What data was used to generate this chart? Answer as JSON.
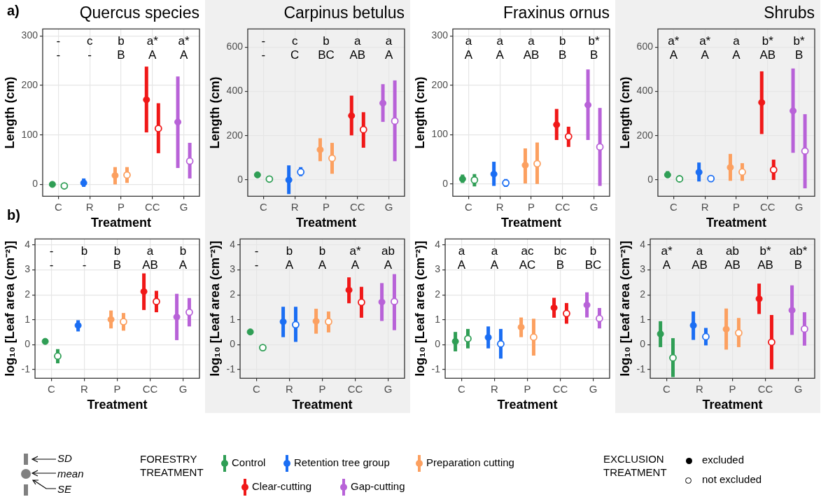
{
  "chart_data": [
    {
      "type": "scatter",
      "title": "Quercus species",
      "xlabel": "Treatment",
      "ylabel": "Length (cm)",
      "categories": [
        "C",
        "R",
        "P",
        "CC",
        "G"
      ],
      "ylim": [
        -24,
        314
      ],
      "yticks": [
        0,
        100,
        200,
        300
      ],
      "grid": true,
      "marker": "circle",
      "series": [
        {
          "colors": [
            "#2f9e55",
            "#1b6ef3",
            "#fca060",
            "#f01818",
            "#b862d8"
          ],
          "values": [
            0,
            3,
            18,
            171,
            126
          ],
          "errors": [
            null,
            [
              -5,
              12
            ],
            [
              0,
              35
            ],
            [
              105,
              238
            ],
            [
              33,
              218
            ]
          ]
        },
        {
          "colors": [
            "#2f9e55",
            null,
            "#fca060",
            "#f01818",
            "#b862d8"
          ],
          "values": [
            -3,
            null,
            19,
            113,
            47
          ],
          "errors": [
            null,
            null,
            [
              3,
              35
            ],
            [
              63,
              164
            ],
            [
              12,
              84
            ]
          ]
        }
      ],
      "annotations": [
        "-",
        "c",
        "b",
        "a*",
        "a*",
        "-",
        "-",
        "B",
        "A",
        "A",
        "a)"
      ]
    },
    {
      "type": "scatter",
      "title": "Carpinus betulus",
      "xlabel": "Treatment",
      "ylabel": "Length (cm)",
      "categories": [
        "C",
        "R",
        "P",
        "CC",
        "G"
      ],
      "ylim": [
        -75,
        683
      ],
      "yticks": [
        0,
        200,
        400,
        600
      ],
      "grid": true,
      "marker": "circle",
      "series": [
        {
          "colors": [
            "#2f9e55",
            "#1b6ef3",
            "#fca060",
            "#f01818",
            "#b862d8"
          ],
          "values": [
            22,
            -1,
            136,
            290,
            347
          ],
          "errors": [
            null,
            [
              -65,
              65
            ],
            [
              84,
              188
            ],
            [
              201,
              381
            ],
            [
              262,
              433
            ]
          ]
        },
        {
          "colors": [
            "#2f9e55",
            "#1b6ef3",
            "#fca060",
            "#f01818",
            "#b862d8"
          ],
          "values": [
            3,
            35,
            97,
            227,
            266
          ],
          "errors": [
            null,
            [
              16,
              57
            ],
            [
              27,
              167
            ],
            [
              145,
              306
            ],
            [
              84,
              450
            ]
          ]
        }
      ],
      "annotations": [
        "-",
        "c",
        "b",
        "a",
        "a",
        "-",
        "C",
        "BC",
        "AB",
        "A"
      ]
    },
    {
      "type": "scatter",
      "title": "Fraxinus ornus",
      "xlabel": "Treatment",
      "ylabel": "Length (cm)",
      "categories": [
        "C",
        "R",
        "P",
        "CC",
        "G"
      ],
      "ylim": [
        -25,
        314
      ],
      "yticks": [
        0,
        100,
        200,
        300
      ],
      "grid": true,
      "marker": "circle",
      "series": [
        {
          "colors": [
            "#2f9e55",
            "#1b6ef3",
            "#fca060",
            "#f01818",
            "#b862d8"
          ],
          "values": [
            10,
            20,
            38,
            120,
            160
          ],
          "errors": [
            [
              2,
              19
            ],
            [
              -4,
              45
            ],
            [
              1,
              72
            ],
            [
              89,
              152
            ],
            [
              89,
              232
            ]
          ]
        },
        {
          "colors": [
            "#2f9e55",
            "#1b6ef3",
            "#fca060",
            "#f01818",
            "#b862d8"
          ],
          "values": [
            8,
            2,
            41,
            96,
            75
          ],
          "errors": [
            [
              -5,
              20
            ],
            [
              -6,
              10
            ],
            [
              0,
              84
            ],
            [
              75,
              116
            ],
            [
              -4,
              154
            ]
          ]
        }
      ],
      "annotations": [
        "a",
        "a",
        "a",
        "b",
        "b*",
        "A",
        "A",
        "AB",
        "B",
        "B"
      ]
    },
    {
      "type": "scatter",
      "title": "Shrubs",
      "xlabel": "Treatment",
      "ylabel": "Length (cm)",
      "categories": [
        "C",
        "R",
        "P",
        "CC",
        "G"
      ],
      "ylim": [
        -75,
        683
      ],
      "yticks": [
        0,
        200,
        400,
        600
      ],
      "grid": true,
      "marker": "circle",
      "series": [
        {
          "colors": [
            "#2f9e55",
            "#1b6ef3",
            "#fca060",
            "#f01818",
            "#b862d8"
          ],
          "values": [
            22,
            34,
            56,
            350,
            312
          ],
          "errors": [
            [
              9,
              39
            ],
            [
              -8,
              78
            ],
            [
              -5,
              117
            ],
            [
              207,
              491
            ],
            [
              122,
              504
            ]
          ]
        },
        {
          "colors": [
            "#2f9e55",
            "#1b6ef3",
            "#fca060",
            "#f01818",
            "#b862d8"
          ],
          "values": [
            4,
            5,
            35,
            45,
            130
          ],
          "errors": [
            null,
            [
              -5,
              16
            ],
            [
              -5,
              75
            ],
            [
              -1,
              91
            ],
            [
              -39,
              297
            ]
          ]
        }
      ],
      "annotations": [
        "a*",
        "a*",
        "a",
        "b*",
        "b*",
        "A",
        "A",
        "A",
        "AB",
        "B"
      ]
    },
    {
      "type": "scatter",
      "xlabel": "Treatment",
      "ylabel": "log₁₀ [Leaf area (cm⁻²)]",
      "categories": [
        "C",
        "R",
        "P",
        "CC",
        "G"
      ],
      "ylim": [
        -1.35,
        4.24
      ],
      "yticks": [
        -1,
        0,
        1,
        2,
        3,
        4
      ],
      "grid": true,
      "marker": "circle",
      "series": [
        {
          "colors": [
            "#2f9e55",
            "#1b6ef3",
            "#fca060",
            "#f01818",
            "#b862d8"
          ],
          "values": [
            0.13,
            0.77,
            1.01,
            2.13,
            1.11
          ],
          "errors": [
            null,
            [
              0.53,
              0.98
            ],
            [
              0.65,
              1.37
            ],
            [
              1.39,
              2.86
            ],
            [
              0.18,
              2.04
            ]
          ]
        },
        {
          "colors": [
            "#2f9e55",
            null,
            "#fca060",
            "#f01818",
            "#b862d8"
          ],
          "values": [
            -0.46,
            null,
            0.92,
            1.73,
            1.3
          ],
          "errors": [
            [
              -0.75,
              -0.18
            ],
            null,
            [
              0.56,
              1.27
            ],
            [
              1.3,
              2.16
            ],
            [
              0.73,
              1.87
            ]
          ]
        }
      ],
      "annotations": [
        "-",
        "b",
        "b",
        "a",
        "b",
        "-",
        "-",
        "B",
        "AB",
        "A",
        "b)"
      ]
    },
    {
      "type": "scatter",
      "xlabel": "Treatment",
      "ylabel": "log₁₀ [Leaf area (cm⁻²)]",
      "categories": [
        "C",
        "R",
        "P",
        "CC",
        "G"
      ],
      "ylim": [
        -1.35,
        4.24
      ],
      "yticks": [
        -1,
        0,
        1,
        2,
        3,
        4
      ],
      "grid": true,
      "marker": "circle",
      "series": [
        {
          "colors": [
            "#2f9e55",
            "#1b6ef3",
            "#fca060",
            "#f01818",
            "#b862d8"
          ],
          "values": [
            0.51,
            0.92,
            0.94,
            2.19,
            1.71
          ],
          "errors": [
            null,
            [
              0.3,
              1.52
            ],
            [
              0.44,
              1.44
            ],
            [
              1.66,
              2.7
            ],
            [
              0.95,
              2.47
            ]
          ]
        },
        {
          "colors": [
            "#2f9e55",
            "#1b6ef3",
            "#fca060",
            "#f01818",
            "#b862d8"
          ],
          "values": [
            -0.12,
            0.8,
            0.92,
            1.7,
            1.73
          ],
          "errors": [
            null,
            [
              0.11,
              1.52
            ],
            [
              0.49,
              1.33
            ],
            [
              1.08,
              2.32
            ],
            [
              0.58,
              2.83
            ]
          ]
        }
      ],
      "annotations": [
        "-",
        "b",
        "b",
        "a*",
        "ab",
        "-",
        "A",
        "A",
        "A",
        "A"
      ]
    },
    {
      "type": "scatter",
      "xlabel": "Treatment",
      "ylabel": "log₁₀ [Leaf area (cm⁻²)]",
      "categories": [
        "C",
        "R",
        "P",
        "CC",
        "G"
      ],
      "ylim": [
        -1.35,
        4.24
      ],
      "yticks": [
        -1,
        0,
        1,
        2,
        3,
        4
      ],
      "grid": true,
      "marker": "circle",
      "series": [
        {
          "colors": [
            "#2f9e55",
            "#1b6ef3",
            "#fca060",
            "#f01818",
            "#b862d8"
          ],
          "values": [
            0.13,
            0.29,
            0.7,
            1.48,
            1.59
          ],
          "errors": [
            [
              -0.27,
              0.51
            ],
            [
              -0.15,
              0.73
            ],
            [
              0.3,
              1.09
            ],
            [
              1.08,
              1.88
            ],
            [
              1.09,
              2.1
            ]
          ]
        },
        {
          "colors": [
            "#2f9e55",
            "#1b6ef3",
            "#fca060",
            "#f01818",
            "#b862d8"
          ],
          "values": [
            0.24,
            0.03,
            0.3,
            1.25,
            1.05
          ],
          "errors": [
            [
              -0.15,
              0.63
            ],
            [
              -0.56,
              0.63
            ],
            [
              -0.44,
              1.04
            ],
            [
              0.84,
              1.67
            ],
            [
              0.65,
              1.47
            ]
          ]
        }
      ],
      "annotations": [
        "a",
        "a",
        "ac",
        "bc",
        "b",
        "A",
        "A",
        "AC",
        "B",
        "BC"
      ]
    },
    {
      "type": "scatter",
      "xlabel": "Treatment",
      "ylabel": "log₁₀ [Leaf area (cm⁻²)]",
      "categories": [
        "C",
        "R",
        "P",
        "CC",
        "G"
      ],
      "ylim": [
        -1.35,
        4.24
      ],
      "yticks": [
        -1,
        0,
        1,
        2,
        3,
        4
      ],
      "grid": true,
      "marker": "circle",
      "series": [
        {
          "colors": [
            "#2f9e55",
            "#1b6ef3",
            "#fca060",
            "#f01818",
            "#b862d8"
          ],
          "values": [
            0.43,
            0.77,
            0.62,
            1.84,
            1.38
          ],
          "errors": [
            [
              -0.1,
              0.94
            ],
            [
              0.19,
              1.33
            ],
            [
              -0.2,
              1.45
            ],
            [
              1.23,
              2.45
            ],
            [
              0.39,
              2.38
            ]
          ]
        },
        {
          "colors": [
            "#2f9e55",
            "#1b6ef3",
            "#fca060",
            "#f01818",
            "#b862d8"
          ],
          "values": [
            -0.53,
            0.32,
            0.47,
            0.1,
            0.63
          ],
          "errors": [
            [
              -1.3,
              0.26
            ],
            [
              -0.03,
              0.67
            ],
            [
              -0.1,
              1.07
            ],
            [
              -0.99,
              1.19
            ],
            [
              -0.04,
              1.3
            ]
          ]
        }
      ],
      "annotations": [
        "a*",
        "a",
        "ab",
        "b*",
        "ab*",
        "A",
        "AB",
        "AB",
        "AB",
        "B"
      ]
    },
    {
      "type": "other",
      "annotations": [
        "SD",
        "mean",
        "SE",
        "FORESTRY TREATMENT",
        "Control",
        "Retention tree group",
        "Preparation cutting",
        "Clear-cutting",
        "Gap-cutting",
        "EXCLUSION TREATMENT",
        "excluded",
        "not excluded"
      ]
    }
  ]
}
